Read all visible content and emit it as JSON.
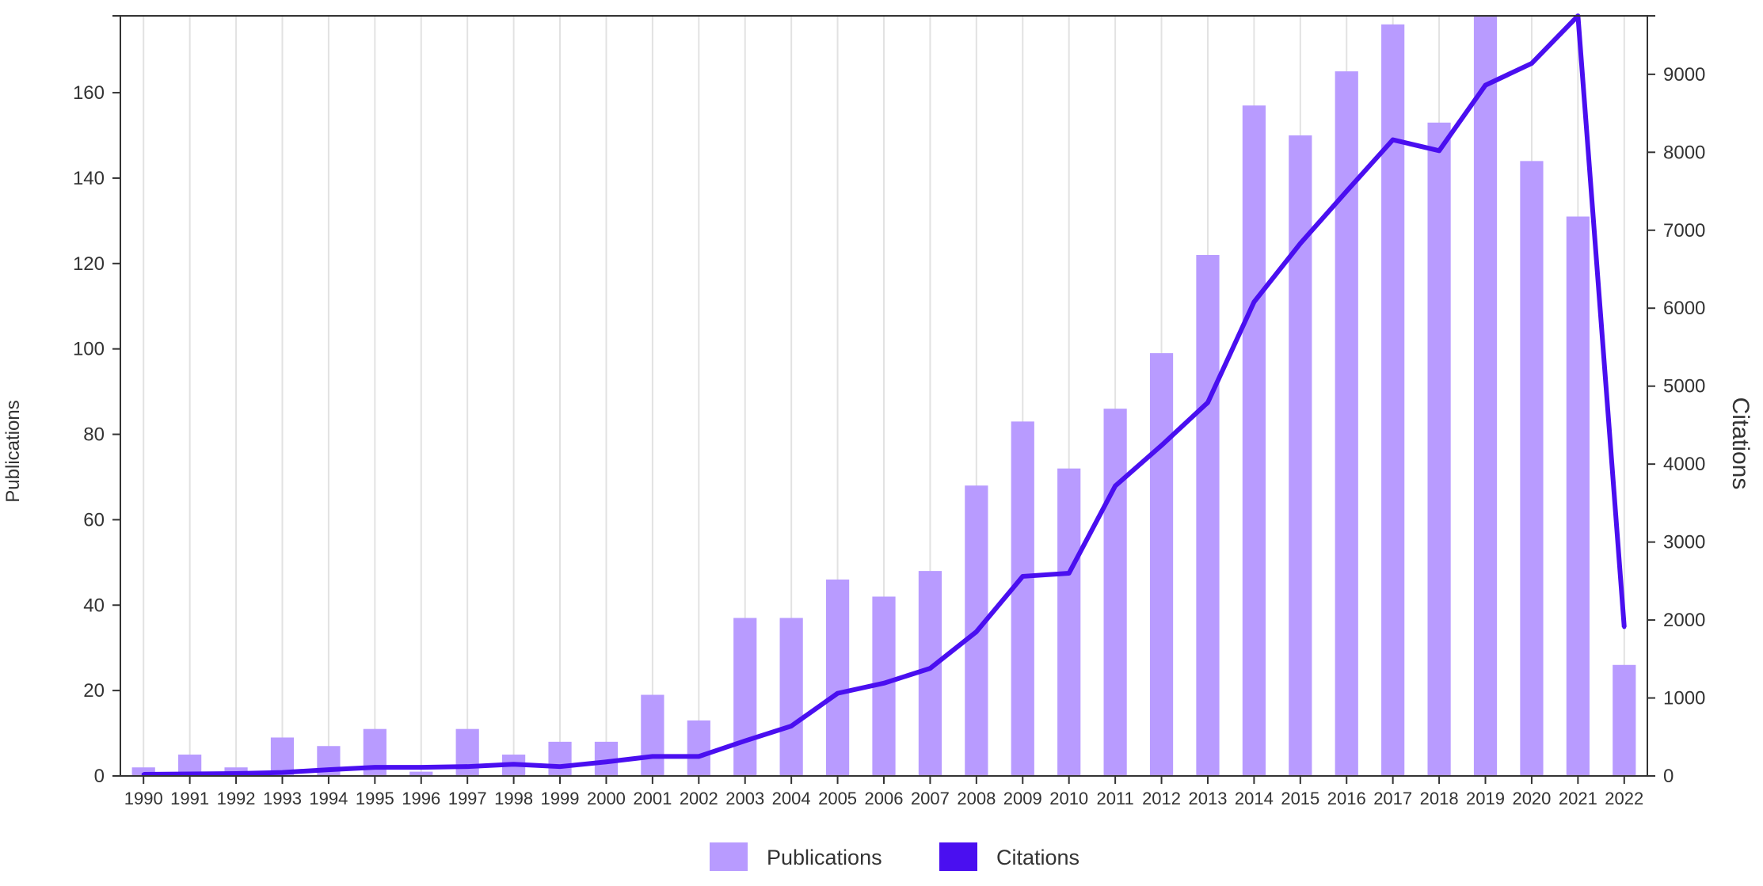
{
  "chart_data": {
    "type": "bar",
    "categories": [
      "1990",
      "1991",
      "1992",
      "1993",
      "1994",
      "1995",
      "1996",
      "1997",
      "1998",
      "1999",
      "2000",
      "2001",
      "2002",
      "2003",
      "2004",
      "2005",
      "2006",
      "2007",
      "2008",
      "2009",
      "2010",
      "2011",
      "2012",
      "2013",
      "2014",
      "2015",
      "2016",
      "2017",
      "2018",
      "2019",
      "2020",
      "2021",
      "2022"
    ],
    "series": [
      {
        "name": "Publications",
        "kind": "bar",
        "axis": "left",
        "color": "#b89bff",
        "values": [
          2,
          5,
          2,
          9,
          7,
          11,
          1,
          11,
          5,
          8,
          8,
          19,
          13,
          37,
          37,
          46,
          42,
          48,
          68,
          83,
          72,
          86,
          99,
          122,
          157,
          150,
          165,
          176,
          153,
          179,
          144,
          131,
          26
        ]
      },
      {
        "name": "Citations",
        "kind": "line",
        "axis": "right",
        "color": "#4a0ff0",
        "values": [
          20,
          25,
          30,
          45,
          80,
          110,
          110,
          120,
          150,
          120,
          180,
          250,
          250,
          450,
          640,
          1060,
          1190,
          1380,
          1850,
          2560,
          2600,
          3720,
          4240,
          4790,
          6080,
          6830,
          7500,
          8160,
          8020,
          8860,
          9140,
          9750,
          1910
        ]
      }
    ],
    "ylabel": "Publications",
    "y2label": "Citations",
    "ylim": [
      0,
      178
    ],
    "y2lim": [
      0,
      9750
    ],
    "yticks": [
      0,
      20,
      40,
      60,
      80,
      100,
      120,
      140,
      160
    ],
    "y2ticks": [
      0,
      1000,
      2000,
      3000,
      4000,
      5000,
      6000,
      7000,
      8000,
      9000
    ],
    "grid": "vertical",
    "legend_position": "bottom-center"
  }
}
